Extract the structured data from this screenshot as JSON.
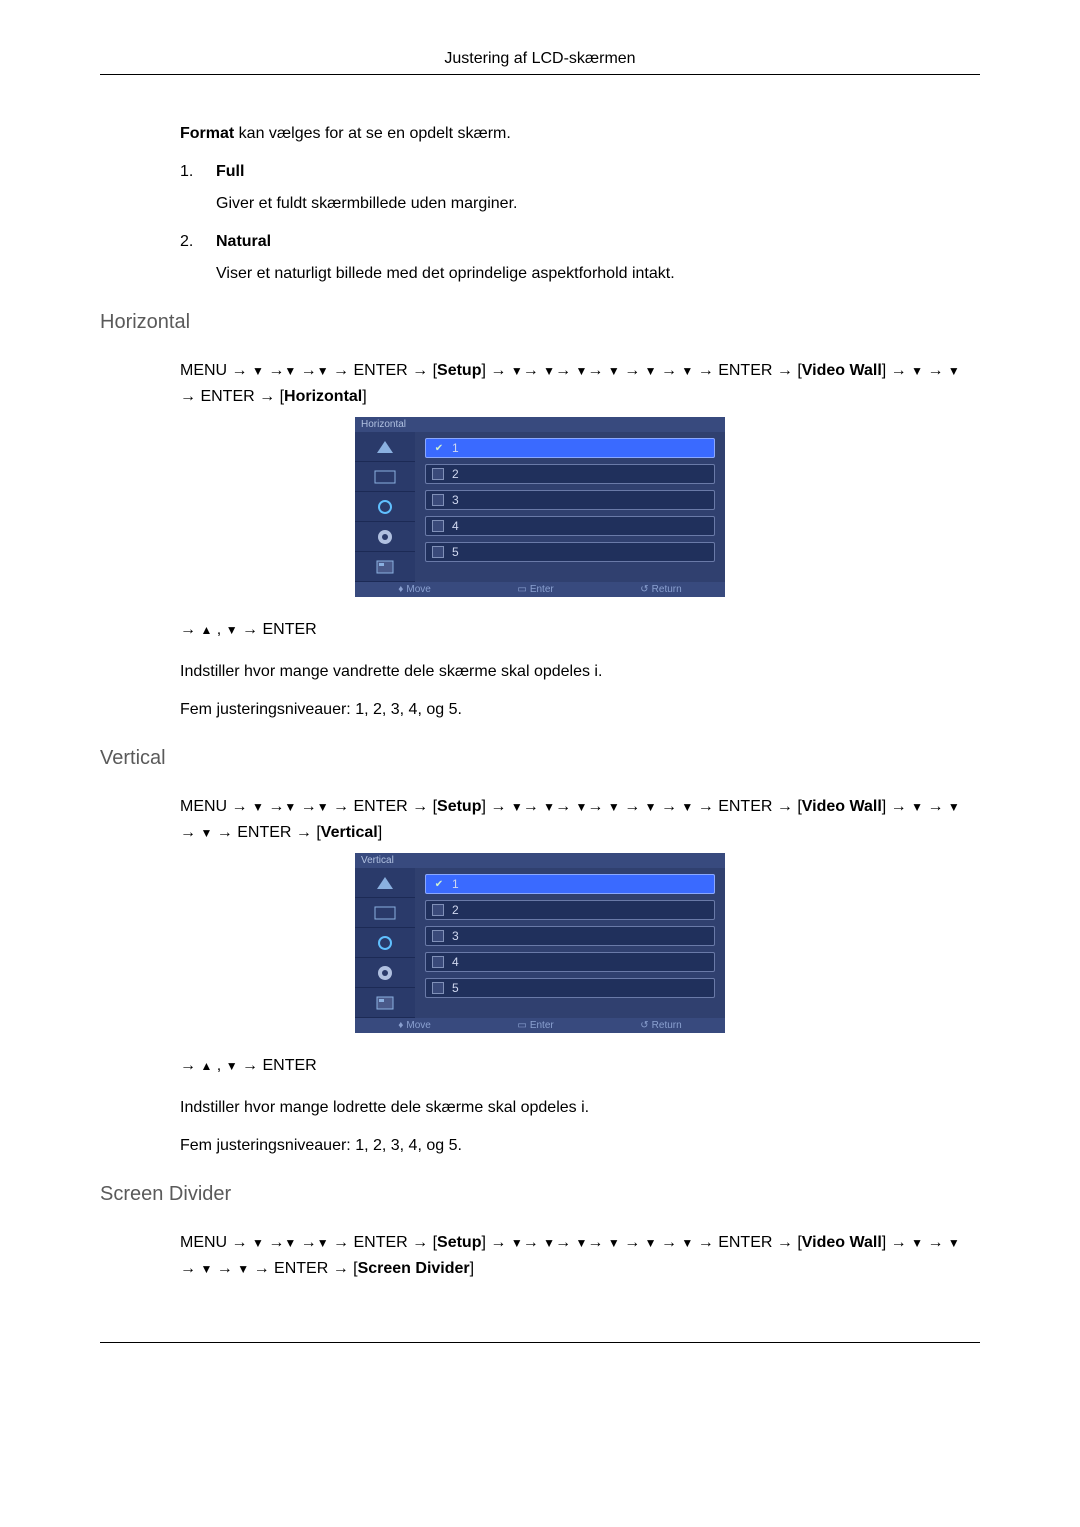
{
  "header": {
    "title": "Justering af LCD-skærmen"
  },
  "intro": {
    "format_label_bold": "Format",
    "format_desc_rest": " kan vælges for at se en opdelt skærm.",
    "items": [
      {
        "num": "1.",
        "label": "Full",
        "desc": "Giver et fuldt skærmbillede uden marginer."
      },
      {
        "num": "2.",
        "label": "Natural",
        "desc": "Viser et naturligt billede med det oprindelige aspektforhold intakt."
      }
    ]
  },
  "glyph": {
    "menu": "MENU",
    "enter": "ENTER",
    "arrow": "→",
    "down": "▼",
    "up": "▲",
    "comma": " , "
  },
  "sections": {
    "horizontal": {
      "heading": "Horizontal",
      "setup_label": "Setup",
      "videowall_label": "Video Wall",
      "final_label": "Horizontal",
      "extra_downs_before_final": 2,
      "osd_title": "Horizontal",
      "body1": "Indstiller hvor mange vandrette dele skærme skal opdeles i.",
      "body2": "Fem justeringsniveauer: 1, 2, 3, 4, og 5."
    },
    "vertical": {
      "heading": "Vertical",
      "setup_label": "Setup",
      "videowall_label": "Video Wall",
      "final_label": "Vertical",
      "extra_downs_before_final": 3,
      "osd_title": "Vertical",
      "body1": "Indstiller hvor mange lodrette dele skærme skal opdeles i.",
      "body2": "Fem justeringsniveauer: 1, 2, 3, 4, og 5."
    },
    "screen_divider": {
      "heading": "Screen Divider",
      "setup_label": "Setup",
      "videowall_label": "Video Wall",
      "final_label": "Screen Divider",
      "extra_downs_before_final": 4
    }
  },
  "osd": {
    "options": [
      "1",
      "2",
      "3",
      "4",
      "5"
    ],
    "selected_index": 0,
    "footer": {
      "move": "Move",
      "enter": "Enter",
      "return": "Return"
    },
    "colors": {
      "panel_bg": "#2a3a6a",
      "main_bg": "#30406f",
      "row_bg": "#20305c",
      "row_sel_bg": "#3a6aff",
      "border": "#6a7aa8",
      "text": "#d0d8f0"
    }
  }
}
